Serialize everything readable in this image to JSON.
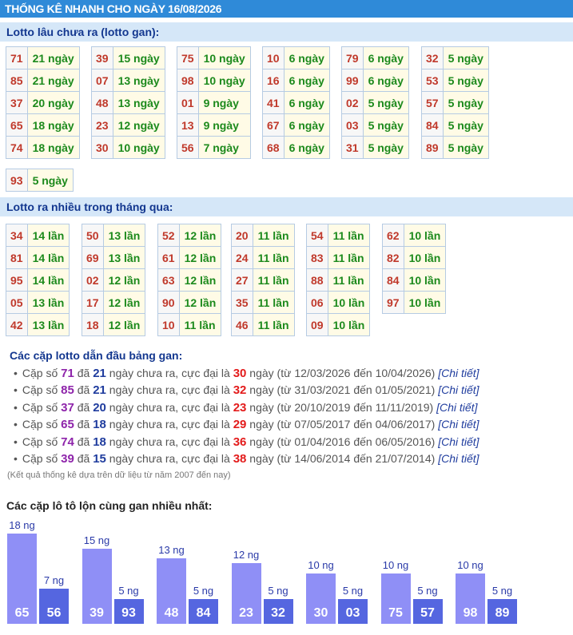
{
  "header": {
    "title": "THỐNG KÊ NHANH CHO NGÀY 16/08/2026"
  },
  "gan": {
    "title": "Lotto lâu chưa ra (lotto gan):",
    "tables": [
      [
        [
          "71",
          "21 ngày"
        ],
        [
          "85",
          "21 ngày"
        ],
        [
          "37",
          "20 ngày"
        ],
        [
          "65",
          "18 ngày"
        ],
        [
          "74",
          "18 ngày"
        ]
      ],
      [
        [
          "39",
          "15 ngày"
        ],
        [
          "07",
          "13 ngày"
        ],
        [
          "48",
          "13 ngày"
        ],
        [
          "23",
          "12 ngày"
        ],
        [
          "30",
          "10 ngày"
        ]
      ],
      [
        [
          "75",
          "10 ngày"
        ],
        [
          "98",
          "10 ngày"
        ],
        [
          "01",
          "9 ngày"
        ],
        [
          "13",
          "9 ngày"
        ],
        [
          "56",
          "7 ngày"
        ]
      ],
      [
        [
          "10",
          "6 ngày"
        ],
        [
          "16",
          "6 ngày"
        ],
        [
          "41",
          "6 ngày"
        ],
        [
          "67",
          "6 ngày"
        ],
        [
          "68",
          "6 ngày"
        ]
      ],
      [
        [
          "79",
          "6 ngày"
        ],
        [
          "99",
          "6 ngày"
        ],
        [
          "02",
          "5 ngày"
        ],
        [
          "03",
          "5 ngày"
        ],
        [
          "31",
          "5 ngày"
        ]
      ],
      [
        [
          "32",
          "5 ngày"
        ],
        [
          "53",
          "5 ngày"
        ],
        [
          "57",
          "5 ngày"
        ],
        [
          "84",
          "5 ngày"
        ],
        [
          "89",
          "5 ngày"
        ]
      ],
      [
        [
          "93",
          "5 ngày"
        ]
      ]
    ]
  },
  "frequent": {
    "title": "Lotto ra nhiều trong tháng qua:",
    "tables": [
      [
        [
          "34",
          "14 lần"
        ],
        [
          "81",
          "14 lần"
        ],
        [
          "95",
          "14 lần"
        ],
        [
          "05",
          "13 lần"
        ],
        [
          "42",
          "13 lần"
        ]
      ],
      [
        [
          "50",
          "13 lần"
        ],
        [
          "69",
          "13 lần"
        ],
        [
          "02",
          "12 lần"
        ],
        [
          "17",
          "12 lần"
        ],
        [
          "18",
          "12 lần"
        ]
      ],
      [
        [
          "52",
          "12 lần"
        ],
        [
          "61",
          "12 lần"
        ],
        [
          "63",
          "12 lần"
        ],
        [
          "90",
          "12 lần"
        ],
        [
          "10",
          "11 lần"
        ]
      ],
      [
        [
          "20",
          "11 lần"
        ],
        [
          "24",
          "11 lần"
        ],
        [
          "27",
          "11 lần"
        ],
        [
          "35",
          "11 lần"
        ],
        [
          "46",
          "11 lần"
        ]
      ],
      [
        [
          "54",
          "11 lần"
        ],
        [
          "83",
          "11 lần"
        ],
        [
          "88",
          "11 lần"
        ],
        [
          "06",
          "10 lần"
        ],
        [
          "09",
          "10 lần"
        ]
      ],
      [
        [
          "62",
          "10 lần"
        ],
        [
          "82",
          "10 lần"
        ],
        [
          "84",
          "10 lần"
        ],
        [
          "97",
          "10 lần"
        ]
      ]
    ]
  },
  "leaders": {
    "title": "Các cặp lotto dẫn đầu bảng gan:",
    "words": {
      "pair": "Cặp số",
      "had": "đã",
      "absent": "ngày chưa ra, cực đại là",
      "link": "[Chi tiết]"
    },
    "items": [
      {
        "pair": "71",
        "days": "21",
        "max": "30",
        "range": "ngày (từ 12/03/2026 đến 10/04/2026)"
      },
      {
        "pair": "85",
        "days": "21",
        "max": "32",
        "range": "ngày (từ 31/03/2021 đến 01/05/2021)"
      },
      {
        "pair": "37",
        "days": "20",
        "max": "23",
        "range": "ngày (từ 20/10/2019 đến 11/11/2019)"
      },
      {
        "pair": "65",
        "days": "18",
        "max": "29",
        "range": "ngày (từ 07/05/2017 đến 04/06/2017)"
      },
      {
        "pair": "74",
        "days": "18",
        "max": "36",
        "range": "ngày (từ 01/04/2016 đến 06/05/2016)"
      },
      {
        "pair": "39",
        "days": "15",
        "max": "38",
        "range": "ngày (từ 14/06/2014 đến 21/07/2014)"
      }
    ],
    "note": "(Kết quả thống kê dựa trên dữ liệu từ năm 2007 đến nay)"
  },
  "reverse_pairs": {
    "title": "Các cặp lô tô lộn cùng gan nhiều nhất:",
    "pairs": [
      {
        "a": "65",
        "a_value": 18,
        "a_label": "18 ng",
        "b": "56",
        "b_value": 7,
        "b_label": "7 ng"
      },
      {
        "a": "39",
        "a_value": 15,
        "a_label": "15 ng",
        "b": "93",
        "b_value": 5,
        "b_label": "5 ng"
      },
      {
        "a": "48",
        "a_value": 13,
        "a_label": "13 ng",
        "b": "84",
        "b_value": 5,
        "b_label": "5 ng"
      },
      {
        "a": "23",
        "a_value": 12,
        "a_label": "12 ng",
        "b": "32",
        "b_value": 5,
        "b_label": "5 ng"
      },
      {
        "a": "30",
        "a_value": 10,
        "a_label": "10 ng",
        "b": "03",
        "b_value": 5,
        "b_label": "5 ng"
      },
      {
        "a": "75",
        "a_value": 10,
        "a_label": "10 ng",
        "b": "57",
        "b_value": 5,
        "b_label": "5 ng"
      },
      {
        "a": "98",
        "a_value": 10,
        "a_label": "10 ng",
        "b": "89",
        "b_value": 5,
        "b_label": "5 ng"
      }
    ]
  }
}
